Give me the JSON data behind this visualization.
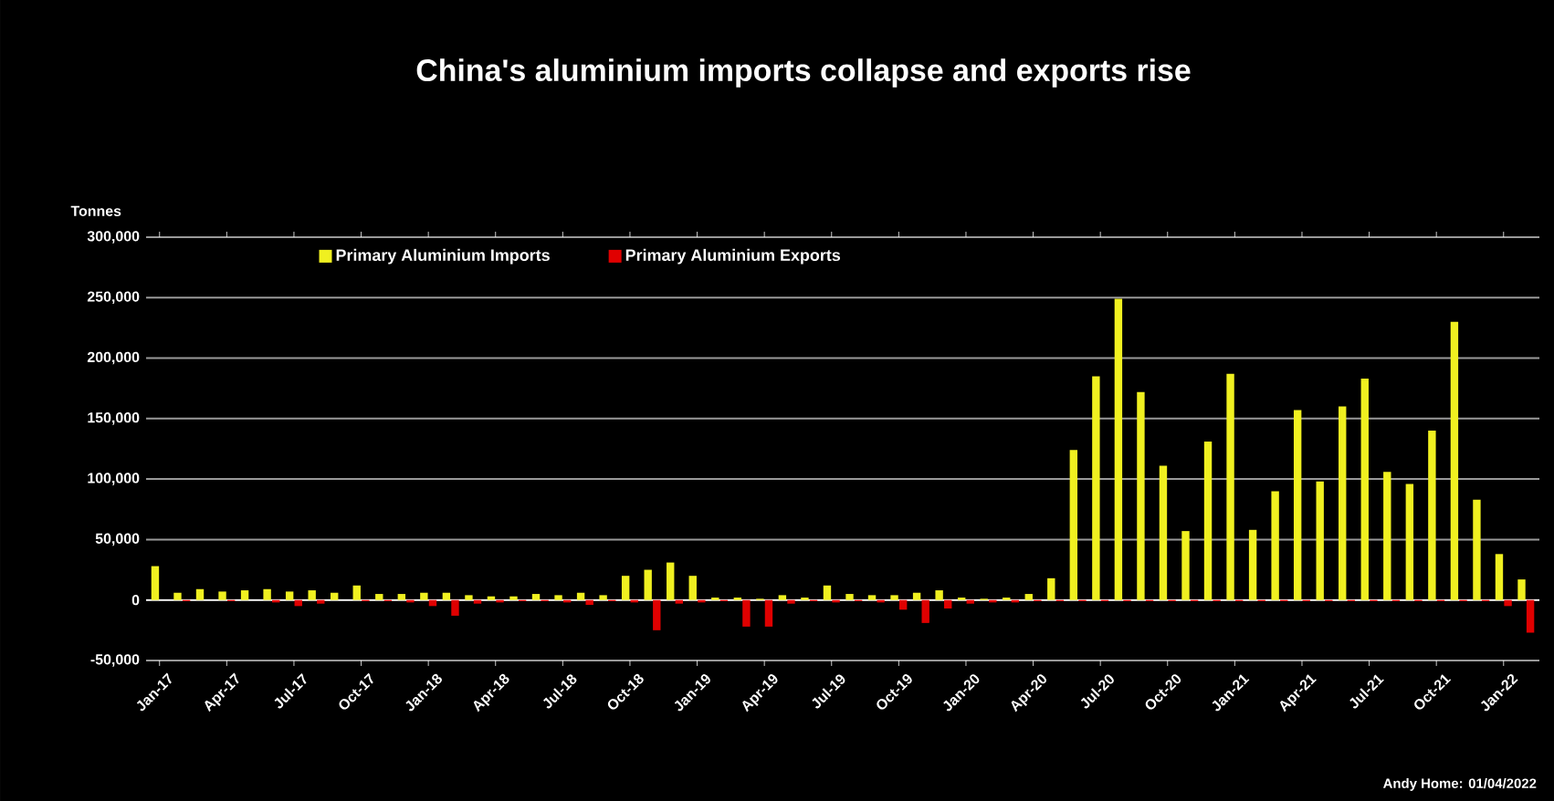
{
  "chart_data": {
    "type": "bar",
    "title": "China's aluminium imports collapse and exports rise",
    "ylabel": "Tonnes",
    "categories": [
      "Jan-17",
      null,
      null,
      "Apr-17",
      null,
      null,
      "Jul-17",
      null,
      null,
      "Oct-17",
      null,
      null,
      "Jan-18",
      null,
      null,
      "Apr-18",
      null,
      null,
      "Jul-18",
      null,
      null,
      "Oct-18",
      null,
      null,
      "Jan-19",
      null,
      null,
      "Apr-19",
      null,
      null,
      "Jul-19",
      null,
      null,
      "Oct-19",
      null,
      null,
      "Jan-20",
      null,
      null,
      "Apr-20",
      null,
      null,
      "Jul-20",
      null,
      null,
      "Oct-20",
      null,
      null,
      "Jan-21",
      null,
      null,
      "Apr-21",
      null,
      null,
      "Jul-21",
      null,
      null,
      "Oct-21",
      null,
      null,
      "Jan-22",
      null
    ],
    "series": [
      {
        "name": "Primary Aluminium Imports",
        "color": "#f0f020",
        "values": [
          28000,
          6000,
          9000,
          7000,
          8000,
          9000,
          7000,
          8000,
          6000,
          12000,
          5000,
          5000,
          6000,
          6000,
          4000,
          3000,
          3000,
          5000,
          4000,
          6000,
          4000,
          20000,
          25000,
          31000,
          20000,
          2000,
          2000,
          1000,
          4000,
          2000,
          12000,
          5000,
          4000,
          4000,
          6000,
          8000,
          2000,
          1000,
          2000,
          5000,
          18000,
          124000,
          185000,
          249000,
          172000,
          111000,
          57000,
          131000,
          187000,
          58000,
          90000,
          157000,
          98000,
          160000,
          183000,
          106000,
          96000,
          140000,
          230000,
          83000,
          38000,
          17000
        ]
      },
      {
        "name": "Primary Aluminium Exports",
        "color": "#e00000",
        "values": [
          0,
          -1000,
          0,
          -1000,
          0,
          -2000,
          -5000,
          -3000,
          0,
          -1000,
          -1000,
          -2000,
          -5000,
          -13000,
          -3000,
          -2000,
          -1000,
          -1000,
          -2000,
          -4000,
          -1000,
          -2000,
          -25000,
          -3000,
          -2000,
          -1000,
          -22000,
          -22000,
          -3000,
          -1000,
          -2000,
          -1000,
          -2000,
          -8000,
          -19000,
          -7000,
          -3000,
          -2000,
          -2000,
          -1000,
          -1000,
          -1000,
          -1000,
          -1000,
          -1000,
          -1000,
          -1000,
          -1000,
          -1000,
          -1000,
          -1000,
          -1000,
          -1000,
          -1000,
          -1000,
          -1000,
          -1000,
          -1000,
          -1000,
          -1000,
          -5000,
          -27000
        ]
      }
    ],
    "ylim": [
      -50000,
      300000
    ],
    "yticks": [
      {
        "value": -50000,
        "label": "-50,000"
      },
      0,
      {
        "value": 50000,
        "label": "50,000"
      },
      {
        "value": 100000,
        "label": "100,000"
      },
      {
        "value": 150000,
        "label": "150,000"
      },
      {
        "value": 200000,
        "label": "200,000"
      },
      {
        "value": 250000,
        "label": "250,000"
      },
      {
        "value": 300000,
        "label": "300,000"
      }
    ],
    "grid": "y",
    "legend": "top left",
    "annotations": [
      "Andy Home: 01/04/2022"
    ]
  }
}
